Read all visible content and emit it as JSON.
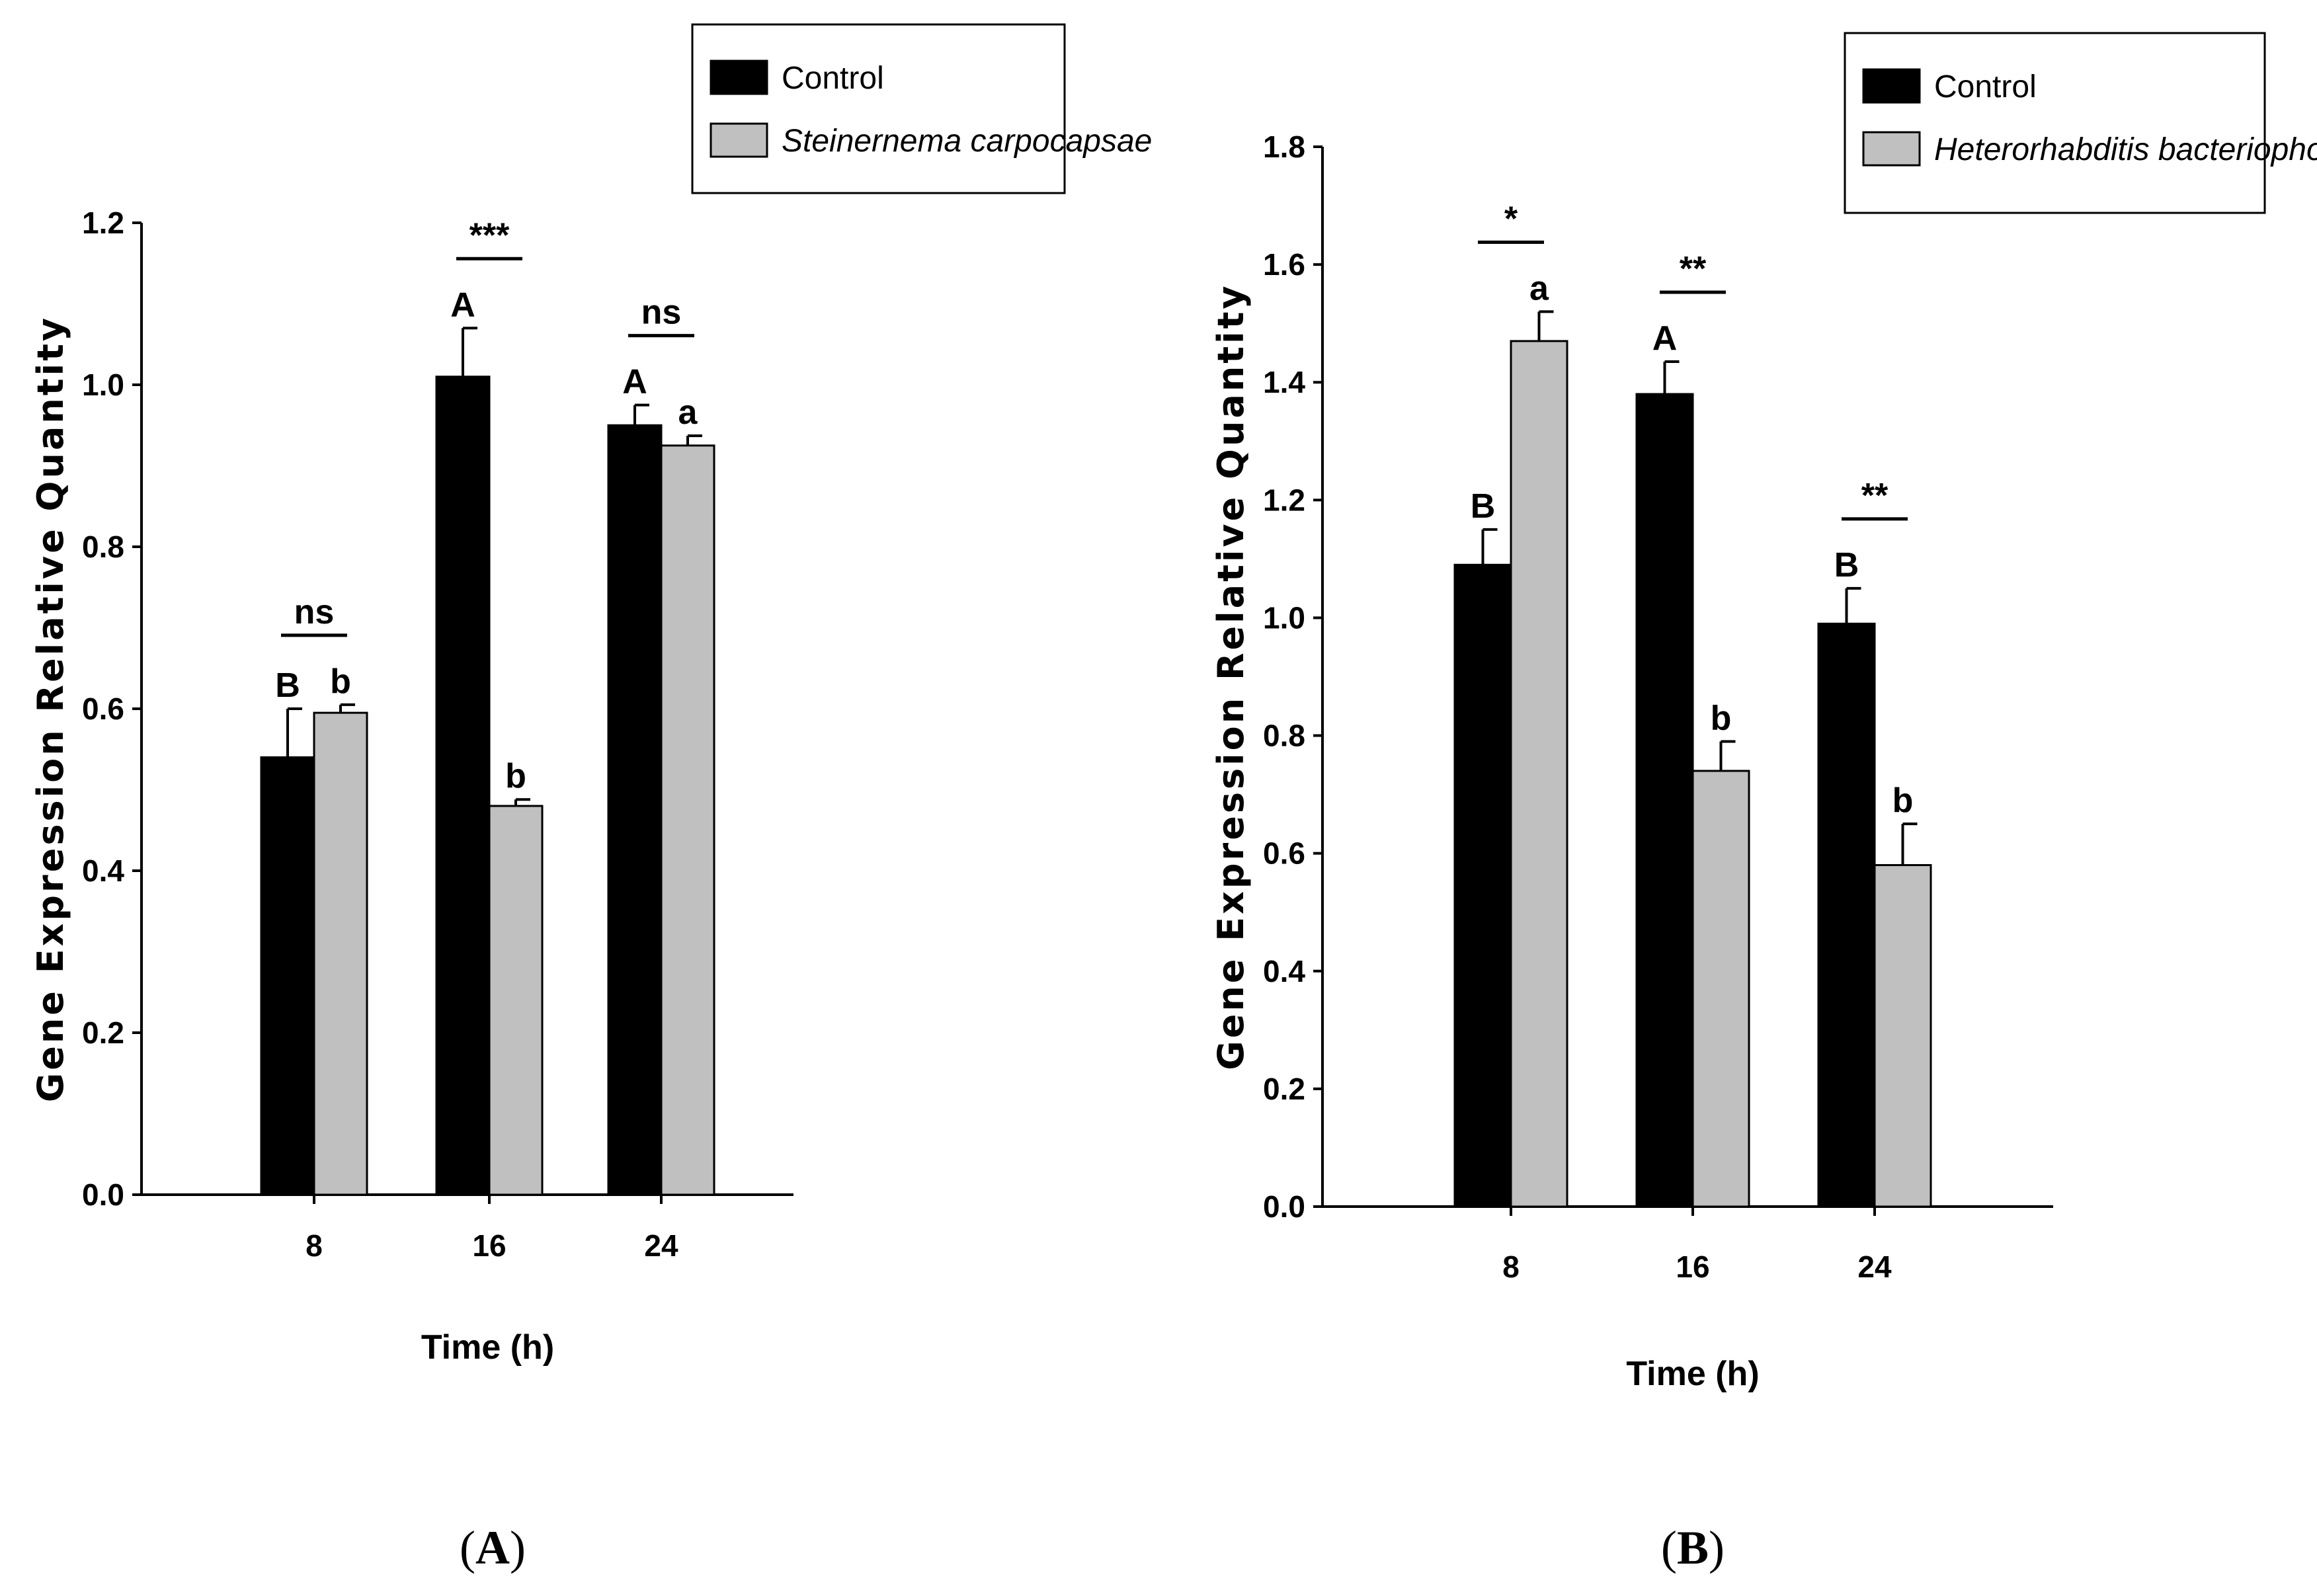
{
  "chart_data": [
    {
      "type": "bar",
      "panel_label": "A",
      "xlabel": "Time (h)",
      "ylabel": "Gene Expression Relative Quantity",
      "categories": [
        "8",
        "16",
        "24"
      ],
      "ylim": [
        0,
        1.2
      ],
      "yticks": [
        "0.0",
        "0.2",
        "0.4",
        "0.6",
        "0.8",
        "1.0",
        "1.2"
      ],
      "series": [
        {
          "name": "Control",
          "italic": false,
          "color": "#000000",
          "values": [
            0.54,
            1.01,
            0.95
          ],
          "errors": [
            0.06,
            0.06,
            0.025
          ],
          "letters": [
            "B",
            "A",
            "A"
          ]
        },
        {
          "name": "Steinernema carpocapsae",
          "italic": true,
          "color": "#c0c0c0",
          "values": [
            0.595,
            0.48,
            0.925
          ],
          "errors": [
            0.01,
            0.008,
            0.012
          ],
          "letters": [
            "b",
            "b",
            "a"
          ]
        }
      ],
      "significance": [
        "ns",
        "***",
        "ns"
      ],
      "legend": "top-right"
    },
    {
      "type": "bar",
      "panel_label": "B",
      "xlabel": "Time (h)",
      "ylabel": "Gene Expression Relative Quantity",
      "categories": [
        "8",
        "16",
        "24"
      ],
      "ylim": [
        0,
        1.8
      ],
      "yticks": [
        "0.0",
        "0.2",
        "0.4",
        "0.6",
        "0.8",
        "1.0",
        "1.2",
        "1.4",
        "1.6",
        "1.8"
      ],
      "series": [
        {
          "name": "Control",
          "italic": false,
          "color": "#000000",
          "values": [
            1.09,
            1.38,
            0.99
          ],
          "errors": [
            0.06,
            0.055,
            0.06
          ],
          "letters": [
            "B",
            "A",
            "B"
          ]
        },
        {
          "name": "Heterorhabditis bacteriophora",
          "italic": true,
          "color": "#c0c0c0",
          "values": [
            1.47,
            0.74,
            0.58
          ],
          "errors": [
            0.05,
            0.05,
            0.07
          ],
          "letters": [
            "a",
            "b",
            "b"
          ]
        }
      ],
      "significance": [
        "*",
        "**",
        "**"
      ],
      "legend": "top-right"
    }
  ]
}
